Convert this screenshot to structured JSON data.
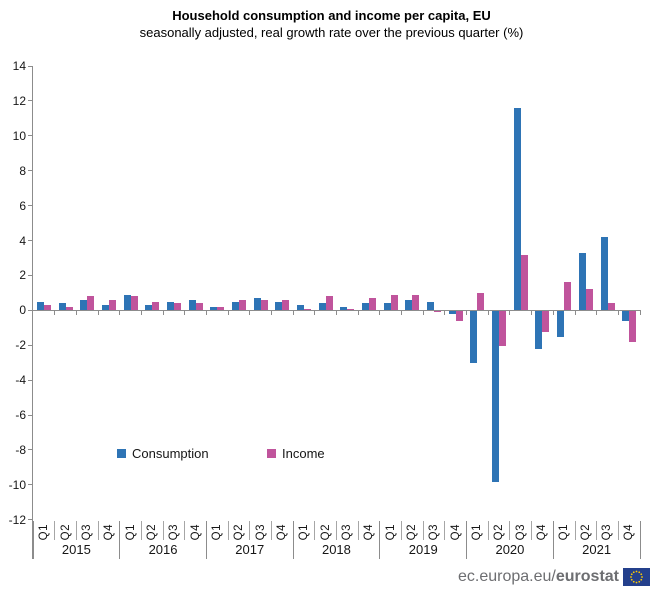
{
  "title": "Household consumption and income per capita, EU",
  "subtitle": "seasonally adjusted, real growth rate over the previous quarter (%)",
  "footer": {
    "url_prefix": "ec.europa.eu/",
    "url_bold": "eurostat",
    "flag_icon": "eu-flag",
    "flag_blue": "#24408c",
    "star_yellow": "#ffcc00"
  },
  "chart_data": {
    "type": "bar",
    "title": "Household consumption and income per capita, EU",
    "subtitle": "seasonally adjusted, real growth rate over the previous quarter (%)",
    "categories": [
      "2015-Q1",
      "2015-Q2",
      "2015-Q3",
      "2015-Q4",
      "2016-Q1",
      "2016-Q2",
      "2016-Q3",
      "2016-Q4",
      "2017-Q1",
      "2017-Q2",
      "2017-Q3",
      "2017-Q4",
      "2018-Q1",
      "2018-Q2",
      "2018-Q3",
      "2018-Q4",
      "2019-Q1",
      "2019-Q2",
      "2019-Q3",
      "2019-Q4",
      "2020-Q1",
      "2020-Q2",
      "2020-Q3",
      "2020-Q4",
      "2021-Q1",
      "2021-Q2",
      "2021-Q3",
      "2021-Q4"
    ],
    "quarters": [
      "Q1",
      "Q2",
      "Q3",
      "Q4"
    ],
    "years": [
      "2015",
      "2016",
      "2017",
      "2018",
      "2019",
      "2020",
      "2021"
    ],
    "series": [
      {
        "name": "Consumption",
        "color": "#2e74b5",
        "values": [
          0.5,
          0.4,
          0.6,
          0.3,
          0.9,
          0.3,
          0.5,
          0.6,
          0.2,
          0.5,
          0.7,
          0.5,
          0.3,
          0.4,
          0.2,
          0.4,
          0.4,
          0.6,
          0.5,
          -0.2,
          -3.0,
          -9.8,
          11.6,
          -2.2,
          -1.5,
          3.3,
          4.2,
          -0.6
        ]
      },
      {
        "name": "Income",
        "color": "#c0549c",
        "values": [
          0.3,
          0.2,
          0.8,
          0.6,
          0.8,
          0.5,
          0.4,
          0.4,
          0.2,
          0.6,
          0.6,
          0.6,
          0.1,
          0.8,
          0.1,
          0.7,
          0.9,
          0.9,
          -0.1,
          -0.6,
          1.0,
          -2.0,
          3.2,
          -1.2,
          1.6,
          1.2,
          0.4,
          -1.8
        ]
      }
    ],
    "ylim": [
      -12,
      14
    ],
    "yticks": [
      14,
      12,
      10,
      8,
      6,
      4,
      2,
      0,
      -2,
      -4,
      -6,
      -8,
      -10,
      -12
    ],
    "ytick_step": 2,
    "grid": false,
    "legend_position": "inside-bottom-left",
    "axis_color": "#8c8c8c"
  }
}
